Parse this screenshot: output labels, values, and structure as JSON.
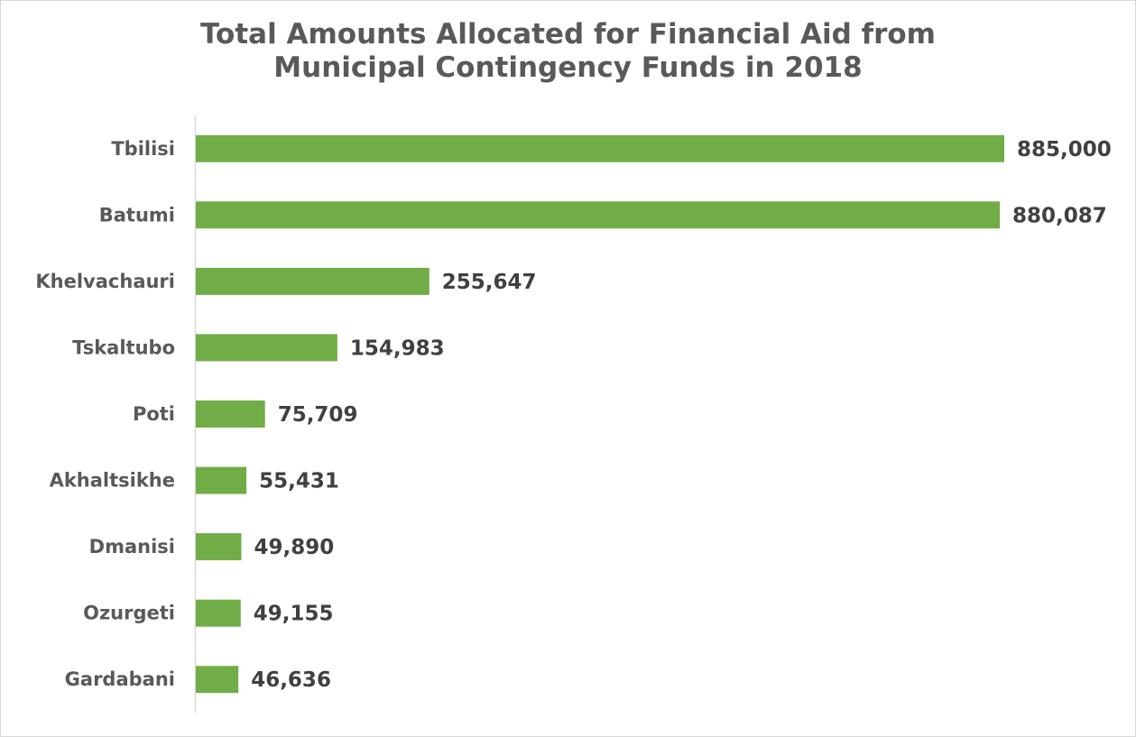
{
  "chart_data": {
    "type": "bar",
    "orientation": "horizontal",
    "title": "Total Amounts Allocated for Financial Aid from Municipal Contingency Funds in 2018",
    "title_lines": [
      "Total Amounts Allocated for Financial Aid from",
      "Municipal Contingency Funds in 2018"
    ],
    "categories": [
      "Tbilisi",
      "Batumi",
      "Khelvachauri",
      "Tskaltubo",
      "Poti",
      "Akhaltsikhe",
      "Dmanisi",
      "Ozurgeti",
      "Gardabani"
    ],
    "values": [
      885000,
      880087,
      255647,
      154983,
      75709,
      55431,
      49890,
      49155,
      46636
    ],
    "data_labels": [
      "885,000",
      "880,087",
      "255,647",
      "154,983",
      "75,709",
      "55,431",
      "49,890",
      "49,155",
      "46,636"
    ],
    "xlim": [
      0,
      885000
    ],
    "grid": false,
    "legend": "none",
    "colors": {
      "bar": "#70ad47",
      "title": "#595959",
      "category_label": "#595959",
      "value_label": "#404040",
      "axis": "#d9d9d9"
    }
  }
}
